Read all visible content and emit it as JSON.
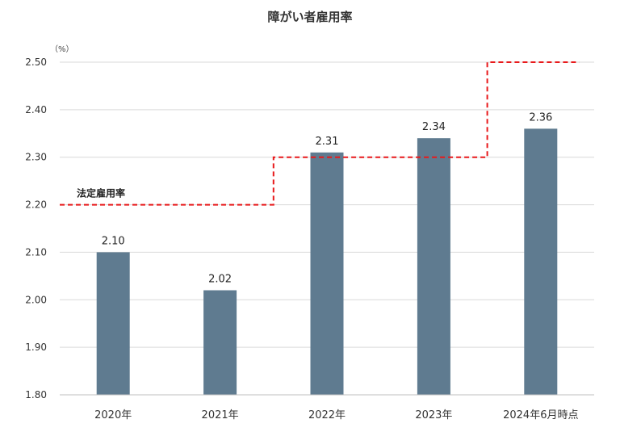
{
  "chart_data": {
    "type": "bar",
    "title": "障がい者雇用率",
    "y_unit": "（%）",
    "categories": [
      "2020年",
      "2021年",
      "2022年",
      "2023年",
      "2024年6月時点"
    ],
    "series": [
      {
        "values": [
          2.1,
          2.02,
          2.31,
          2.34,
          2.36
        ],
        "data_labels": [
          "2.10",
          "2.02",
          "2.31",
          "2.34",
          "2.36"
        ],
        "color": "#5f7b90"
      }
    ],
    "reference_line": {
      "name": "法定雇用率",
      "style": "dashed-step",
      "color": "#e8191b",
      "values": [
        2.2,
        2.2,
        2.3,
        2.3,
        2.5
      ]
    },
    "ylim": [
      1.8,
      2.5
    ],
    "yticks": [
      1.8,
      1.9,
      2.0,
      2.1,
      2.2,
      2.3,
      2.4,
      2.5
    ],
    "ytick_labels": [
      "1.80",
      "1.90",
      "2.00",
      "2.10",
      "2.20",
      "2.30",
      "2.40",
      "2.50"
    ],
    "grid": true,
    "legend": "none"
  }
}
